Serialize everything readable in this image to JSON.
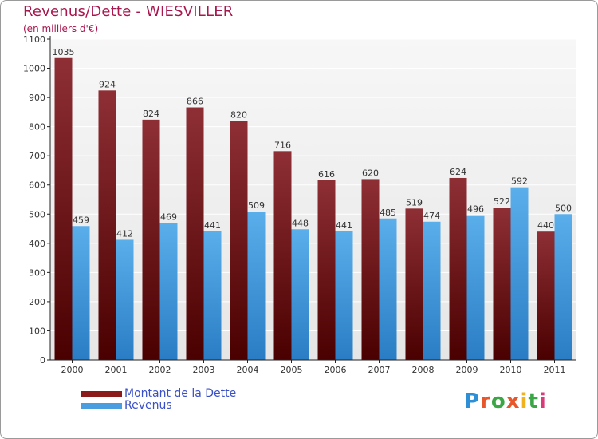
{
  "header": {
    "title": "Revenus/Dette - WIESVILLER",
    "subtitle": "(en milliers d'€)"
  },
  "legend": {
    "items": [
      {
        "label": "Montant de la Dette",
        "color": "#8b1a1a"
      },
      {
        "label": "Revenus",
        "color": "#4a9ee0"
      }
    ]
  },
  "logo": {
    "text": "Proxiti",
    "colors": [
      "#2f8fd6",
      "#e8572a",
      "#3aa646",
      "#e8572a",
      "#f0b21e",
      "#3aa646",
      "#d93a7a"
    ]
  },
  "chart_data": {
    "type": "bar",
    "title": "Revenus/Dette - WIESVILLER",
    "subtitle": "(en milliers d'€)",
    "xlabel": "",
    "ylabel": "",
    "categories": [
      "2000",
      "2001",
      "2002",
      "2003",
      "2004",
      "2005",
      "2006",
      "2007",
      "2008",
      "2009",
      "2010",
      "2011"
    ],
    "series": [
      {
        "name": "Montant de la Dette",
        "color": "#8b1a1a",
        "values": [
          1035,
          924,
          824,
          866,
          820,
          716,
          616,
          620,
          519,
          624,
          522,
          440
        ]
      },
      {
        "name": "Revenus",
        "color": "#4a9ee0",
        "values": [
          459,
          412,
          469,
          441,
          509,
          448,
          441,
          485,
          474,
          496,
          592,
          500
        ]
      }
    ],
    "ylim": [
      0,
      1100
    ],
    "yticks": [
      0,
      100,
      200,
      300,
      400,
      500,
      600,
      700,
      800,
      900,
      1000,
      1100
    ],
    "grid": true,
    "legend_position": "bottom-left"
  }
}
